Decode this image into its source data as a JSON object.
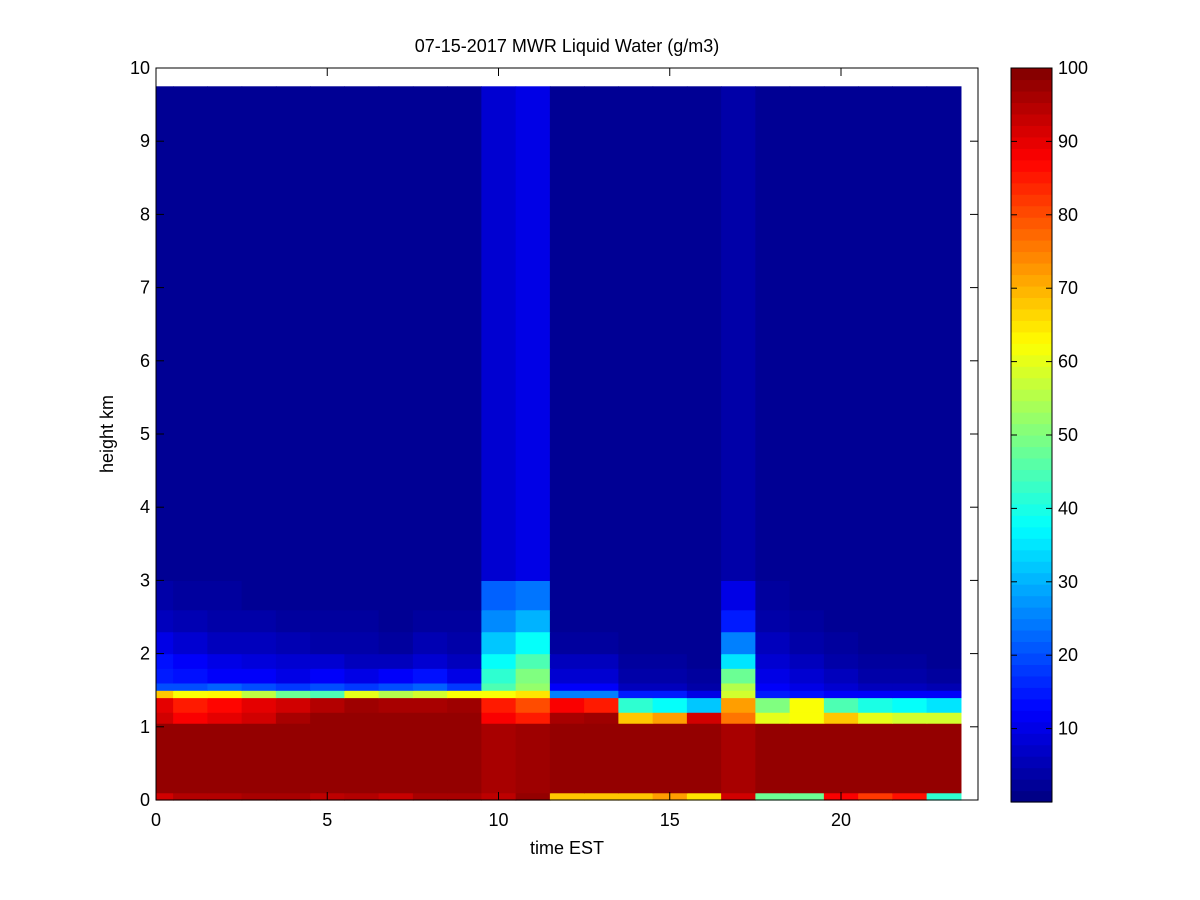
{
  "chart_data": {
    "type": "heatmap",
    "title": "07-15-2017 MWR Liquid Water (g/m3)",
    "xlabel": "time EST",
    "ylabel": "height km",
    "xlim": [
      0,
      24
    ],
    "ylim": [
      0,
      10
    ],
    "x_ticks": [
      0,
      5,
      10,
      15,
      20
    ],
    "y_ticks": [
      0,
      1,
      2,
      3,
      4,
      5,
      6,
      7,
      8,
      9,
      10
    ],
    "grid": false,
    "colormap": "jet",
    "colorbar": {
      "min": 0,
      "max": 100,
      "ticks": [
        10,
        20,
        30,
        40,
        50,
        60,
        70,
        80,
        90,
        100
      ]
    },
    "time_hours_EST": [
      0,
      1,
      2,
      3,
      4,
      5,
      6,
      7,
      8,
      9,
      10,
      11,
      12,
      13,
      14,
      15,
      16,
      17,
      18,
      19,
      20,
      21,
      22,
      23
    ],
    "data_top_km": 9.75,
    "layers_km": [
      0,
      0.1,
      1.05,
      1.2,
      1.4,
      1.5,
      1.6,
      1.8,
      2.0,
      2.3,
      2.6,
      3.0,
      9.75
    ],
    "values_by_layer": [
      [
        92,
        95,
        95,
        96,
        96,
        94,
        95,
        93,
        96,
        96,
        94,
        98,
        68,
        68,
        68,
        72,
        65,
        92,
        48,
        48,
        88,
        82,
        86,
        42
      ],
      [
        98,
        98,
        98,
        98,
        98,
        98,
        98,
        98,
        98,
        98,
        96,
        97,
        98,
        98,
        98,
        98,
        98,
        96,
        98,
        98,
        98,
        98,
        98,
        98
      ],
      [
        92,
        88,
        90,
        92,
        96,
        98,
        98,
        98,
        98,
        98,
        88,
        85,
        96,
        97,
        68,
        72,
        92,
        76,
        60,
        62,
        68,
        60,
        58,
        58
      ],
      [
        90,
        85,
        87,
        90,
        92,
        95,
        97,
        96,
        96,
        97,
        85,
        80,
        88,
        85,
        42,
        38,
        32,
        72,
        50,
        62,
        45,
        40,
        38,
        35
      ],
      [
        68,
        62,
        63,
        56,
        48,
        45,
        60,
        55,
        58,
        62,
        62,
        65,
        25,
        25,
        15,
        15,
        10,
        58,
        15,
        14,
        12,
        12,
        12,
        12
      ],
      [
        20,
        20,
        22,
        20,
        18,
        20,
        18,
        20,
        22,
        18,
        45,
        52,
        12,
        12,
        6,
        6,
        4,
        55,
        12,
        10,
        8,
        6,
        6,
        5
      ],
      [
        15,
        14,
        12,
        12,
        10,
        12,
        10,
        12,
        14,
        10,
        42,
        50,
        8,
        8,
        4,
        4,
        3,
        48,
        10,
        8,
        6,
        4,
        4,
        3
      ],
      [
        14,
        12,
        10,
        9,
        8,
        8,
        6,
        6,
        8,
        6,
        38,
        45,
        6,
        6,
        3,
        3,
        2,
        35,
        8,
        6,
        4,
        3,
        3,
        2
      ],
      [
        10,
        8,
        6,
        6,
        5,
        4,
        4,
        3,
        5,
        4,
        32,
        38,
        3,
        3,
        2,
        2,
        2,
        25,
        6,
        4,
        3,
        2,
        2,
        2
      ],
      [
        6,
        5,
        4,
        4,
        3,
        3,
        3,
        2,
        3,
        3,
        26,
        30,
        2,
        2,
        2,
        2,
        2,
        15,
        4,
        3,
        2,
        2,
        2,
        2
      ],
      [
        4,
        3,
        3,
        2,
        2,
        2,
        2,
        2,
        2,
        2,
        22,
        24,
        2,
        2,
        2,
        2,
        2,
        10,
        3,
        2,
        2,
        2,
        2,
        2
      ],
      [
        2,
        2,
        2,
        2,
        2,
        2,
        2,
        2,
        2,
        2,
        8,
        10,
        2,
        2,
        2,
        2,
        2,
        4,
        2,
        2,
        2,
        2,
        2,
        2
      ]
    ]
  }
}
